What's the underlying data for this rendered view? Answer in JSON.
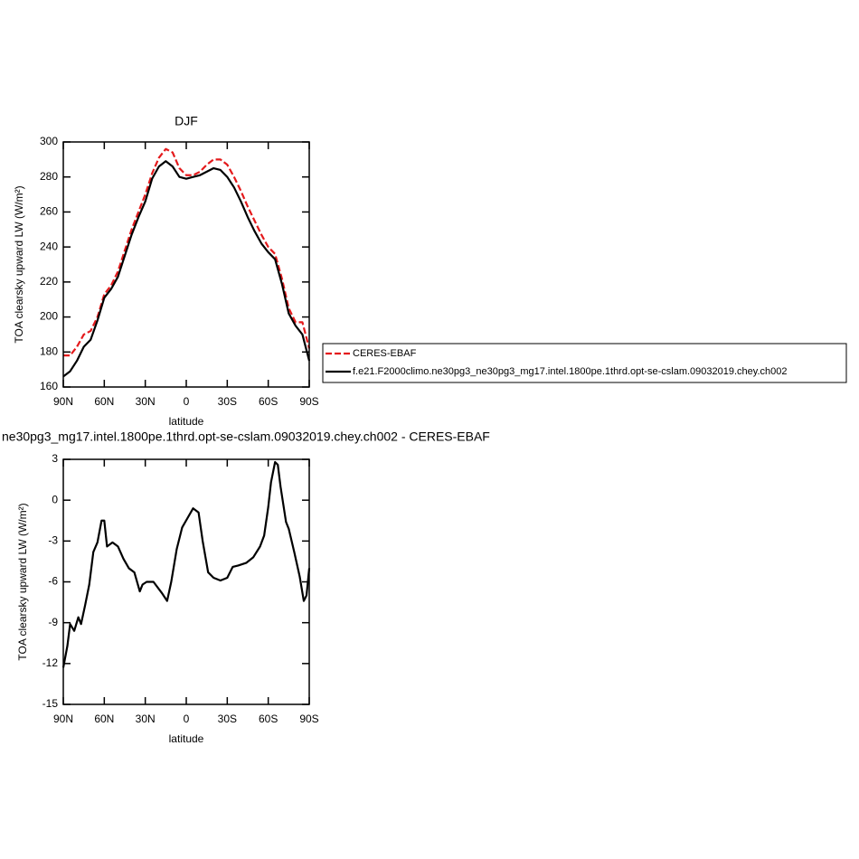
{
  "chart_data": [
    {
      "type": "line",
      "title": "DJF",
      "xlabel": "latitude",
      "ylabel": "TOA clearsky upward LW (W/m²)",
      "xlim": [
        90,
        -90
      ],
      "xticks": [
        {
          "value": 90,
          "label": "90N"
        },
        {
          "value": 60,
          "label": "60N"
        },
        {
          "value": 30,
          "label": "30N"
        },
        0,
        {
          "value": -30,
          "label": "30S"
        },
        {
          "value": -60,
          "label": "60S"
        },
        {
          "value": -90,
          "label": "90S"
        }
      ],
      "ylim": [
        160,
        300
      ],
      "yticks": [
        160,
        180,
        200,
        220,
        240,
        260,
        280,
        300
      ],
      "legend": "right",
      "x": [
        90,
        85,
        80,
        75,
        70,
        65,
        60,
        55,
        50,
        45,
        40,
        35,
        30,
        25,
        20,
        15,
        10,
        5,
        0,
        -5,
        -10,
        -15,
        -20,
        -25,
        -30,
        -35,
        -40,
        -45,
        -50,
        -55,
        -60,
        -65,
        -70,
        -75,
        -80,
        -85,
        -90
      ],
      "series": [
        {
          "name": "CERES-EBAF",
          "color": "#e41a1c",
          "linestyle": "dashed",
          "values": [
            178,
            178,
            183,
            190,
            192,
            200,
            213,
            218,
            226,
            238,
            250,
            260,
            270,
            282,
            291,
            296,
            294,
            285,
            281,
            281,
            283,
            287,
            290,
            290,
            287,
            280,
            272,
            263,
            255,
            247,
            240,
            236,
            222,
            205,
            197,
            197,
            182
          ]
        },
        {
          "name": "f.e21.F2000climo.ne30pg3_ne30pg3_mg17.intel.1800pe.1thrd.opt-se-cslam.09032019.chey.ch002",
          "color": "#000000",
          "linestyle": "solid",
          "values": [
            166,
            169,
            175,
            183,
            187,
            198,
            211,
            216,
            223,
            235,
            247,
            257,
            266,
            279,
            286,
            289,
            286,
            280,
            279,
            280,
            281,
            283,
            285,
            284,
            280,
            274,
            266,
            257,
            249,
            242,
            237,
            233,
            219,
            202,
            195,
            190,
            175
          ]
        }
      ]
    },
    {
      "type": "line",
      "title": "ne30pg3_mg17.intel.1800pe.1thrd.opt-se-cslam.09032019.chey.ch002 - CERES-EBAF",
      "xlabel": "latitude",
      "ylabel": "TOA clearsky upward LW (W/m²)",
      "xlim": [
        90,
        -90
      ],
      "xticks": [
        {
          "value": 90,
          "label": "90N"
        },
        {
          "value": 60,
          "label": "60N"
        },
        {
          "value": 30,
          "label": "30N"
        },
        0,
        {
          "value": -30,
          "label": "30S"
        },
        {
          "value": -60,
          "label": "60S"
        },
        {
          "value": -90,
          "label": "90S"
        }
      ],
      "ylim": [
        -15,
        3
      ],
      "yticks": [
        -15,
        -12,
        -9,
        -6,
        -3,
        0,
        3
      ],
      "x": [
        90,
        87,
        85,
        82,
        79,
        77,
        74,
        71,
        68,
        65,
        62,
        60,
        58,
        54,
        50,
        46,
        42,
        38,
        34,
        32,
        29,
        24,
        18,
        14,
        11,
        7,
        3,
        -1,
        -5,
        -9,
        -12,
        -16,
        -20,
        -25,
        -30,
        -34,
        -38,
        -44,
        -49,
        -54,
        -57,
        -60,
        -62,
        -65,
        -67,
        -69,
        -73,
        -75,
        -79,
        -83,
        -86,
        -88,
        -90
      ],
      "series": [
        {
          "color": "#000000",
          "linestyle": "solid",
          "values": [
            -12.3,
            -10.7,
            -9.1,
            -9.6,
            -8.6,
            -9.1,
            -7.7,
            -6.2,
            -3.8,
            -3.1,
            -1.5,
            -1.5,
            -3.4,
            -3.1,
            -3.4,
            -4.3,
            -5.0,
            -5.3,
            -6.7,
            -6.2,
            -6.0,
            -6.0,
            -6.8,
            -7.4,
            -6.0,
            -3.6,
            -2.0,
            -1.3,
            -0.6,
            -0.9,
            -3.0,
            -5.3,
            -5.7,
            -5.9,
            -5.7,
            -4.9,
            -4.8,
            -4.6,
            -4.2,
            -3.4,
            -2.6,
            -0.5,
            1.3,
            2.8,
            2.6,
            1.0,
            -1.6,
            -2.1,
            -3.8,
            -5.6,
            -7.4,
            -7.0,
            -5.0
          ]
        }
      ]
    }
  ]
}
